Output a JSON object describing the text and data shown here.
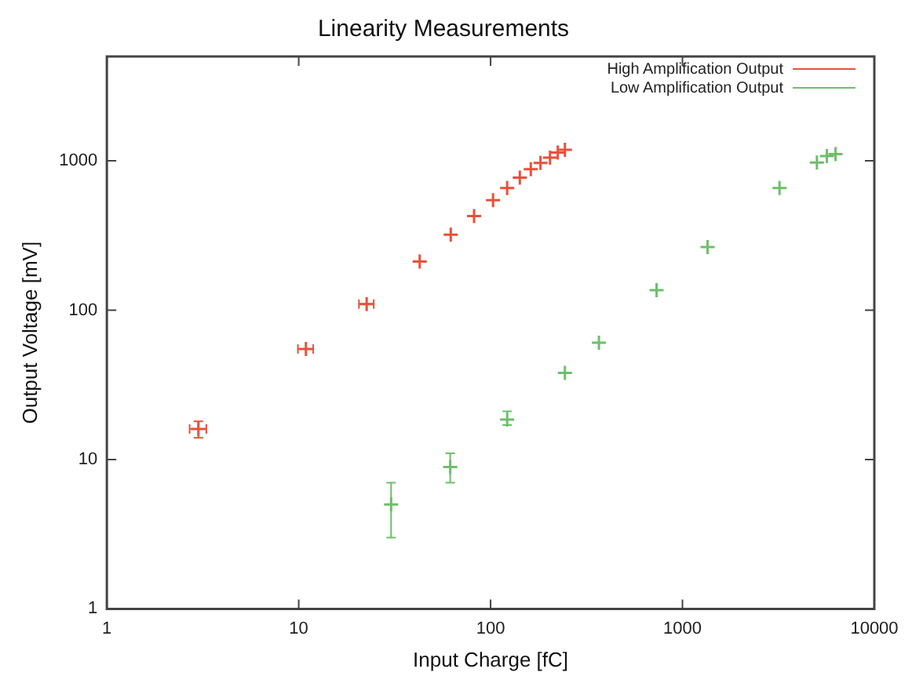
{
  "chart_data": {
    "type": "scatter",
    "title": "Linearity Measurements",
    "xlabel": "Input Charge [fC]",
    "ylabel": "Output Voltage [mV]",
    "log": "xy",
    "xlim": [
      1,
      10000
    ],
    "ylim": [
      1,
      5000
    ],
    "xticks": [
      1,
      10,
      100,
      1000,
      10000
    ],
    "yticks": [
      1,
      10,
      100,
      1000
    ],
    "grid": false,
    "legend": "top right",
    "marker": "cross",
    "series": [
      {
        "name": "High Amplification Output",
        "color": "#e8503a",
        "x": [
          3,
          10.9,
          22.6,
          42.7,
          62,
          82,
          103,
          122,
          142,
          162,
          182,
          204,
          224,
          244
        ],
        "values": [
          16,
          55,
          110,
          212,
          320,
          427,
          545,
          658,
          771,
          879,
          968,
          1050,
          1137,
          1186
        ],
        "errors": [
          2,
          null,
          null,
          null,
          null,
          null,
          null,
          null,
          null,
          null,
          null,
          null,
          null,
          null
        ],
        "xerrors": [
          0.3,
          1,
          2,
          null,
          null,
          null,
          null,
          null,
          null,
          null,
          null,
          null,
          null,
          null
        ]
      },
      {
        "name": "Low Amplification Output",
        "color": "#6cbf6a",
        "x": [
          30.3,
          61.6,
          122,
          244,
          367,
          733,
          1352,
          3206,
          5020,
          5660,
          6280
        ],
        "values": [
          5,
          8.9,
          18.5,
          38,
          60.5,
          136,
          265,
          658,
          975,
          1076,
          1110
        ],
        "errors": [
          [
            3,
            7
          ],
          [
            7,
            11
          ],
          [
            17,
            21
          ],
          null,
          null,
          null,
          null,
          null,
          null,
          null,
          null
        ]
      }
    ]
  }
}
